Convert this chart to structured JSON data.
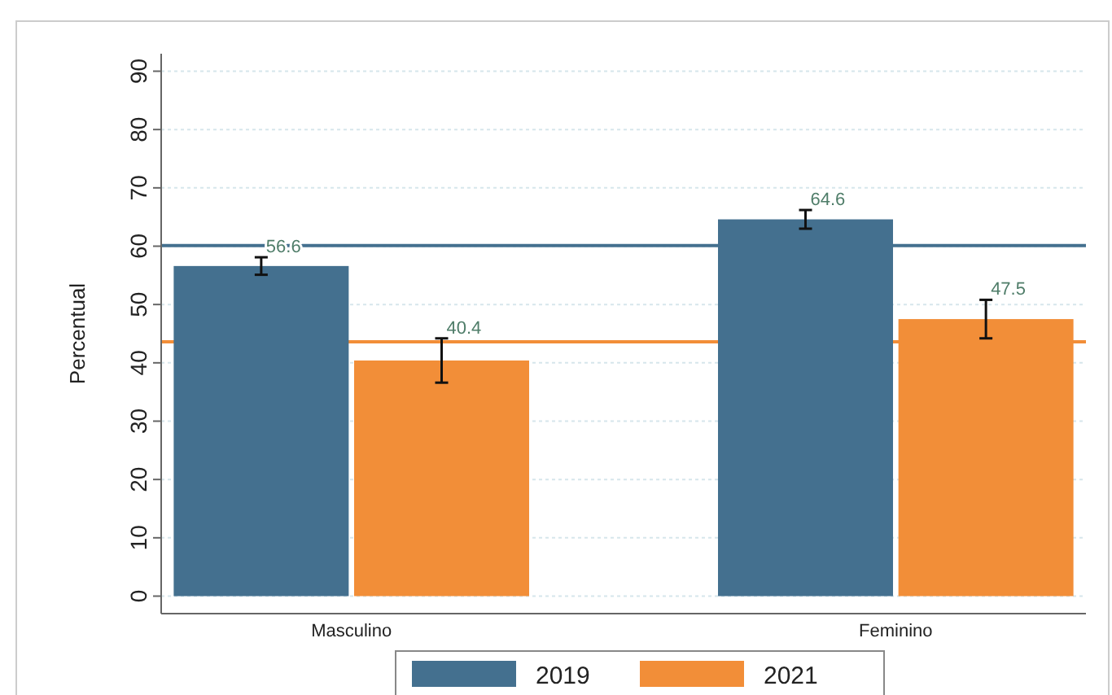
{
  "chart_data": {
    "type": "bar",
    "ylabel": "Percentual",
    "categories": [
      "Masculino",
      "Feminino"
    ],
    "series": [
      {
        "name": "2019",
        "color": "#44708f",
        "values": [
          56.6,
          64.6
        ],
        "errors": [
          1.5,
          1.6
        ]
      },
      {
        "name": "2021",
        "color": "#f28e38",
        "values": [
          40.4,
          47.5
        ],
        "errors": [
          3.8,
          3.3
        ]
      }
    ],
    "ylim": [
      -3,
      93
    ],
    "yticks": [
      0,
      10,
      20,
      30,
      40,
      50,
      60,
      70,
      80,
      90
    ],
    "grid": "y",
    "legend": "bottom",
    "data_labels": true,
    "ref_lines": [
      {
        "axis": "y",
        "value": 60.1,
        "color": "#44708f"
      },
      {
        "axis": "y",
        "value": 43.6,
        "color": "#f28e38"
      }
    ]
  }
}
